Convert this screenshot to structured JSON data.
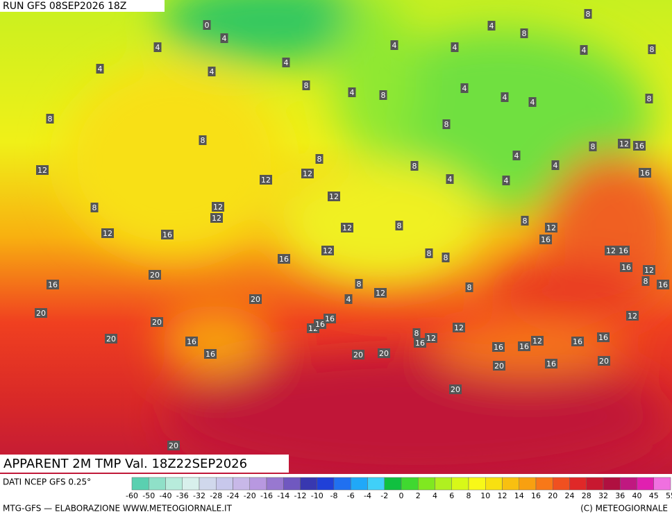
{
  "header": {
    "run": "RUN GFS 08SEP2026 18Z",
    "title": "APPARENT 2M TMP Val. 18Z22SEP2026"
  },
  "footer": {
    "source": "DATI NCEP GFS 0.25°",
    "credit": "MTG-GFS — ELABORAZIONE WWW.METEOGIORNALE.IT",
    "copyright": "(C) METEOGIORNALE"
  },
  "colorbar": {
    "labels": [
      -60,
      -50,
      -40,
      -36,
      -32,
      -28,
      -24,
      -20,
      -16,
      -14,
      -12,
      -10,
      -8,
      -6,
      -4,
      -2,
      0,
      2,
      4,
      6,
      8,
      10,
      12,
      14,
      16,
      20,
      24,
      28,
      32,
      36,
      40,
      45,
      55
    ],
    "colors": [
      "#5ad0b0",
      "#8fe0c8",
      "#b8ecdc",
      "#d8f0ec",
      "#d0d8ec",
      "#c8c8ec",
      "#c8b8e8",
      "#b898e0",
      "#9878d0",
      "#7058c0",
      "#3838b0",
      "#2040d8",
      "#2070f0",
      "#20a8f8",
      "#40d0f8",
      "#10c040",
      "#40d830",
      "#80e820",
      "#b0f020",
      "#d8f818",
      "#f8f818",
      "#f8e010",
      "#f8c010",
      "#f8a010",
      "#f87818",
      "#f05020",
      "#e02828",
      "#c81830",
      "#b01040",
      "#c01880",
      "#e020b0",
      "#f070e0"
    ]
  },
  "map_labels": [
    0,
    4,
    4,
    4,
    4,
    4,
    8,
    8,
    8,
    12,
    12,
    12,
    8,
    12,
    12,
    12,
    8,
    12,
    16,
    12,
    8,
    12,
    16,
    8,
    8,
    16,
    20,
    20,
    20,
    8,
    12,
    4,
    8,
    20,
    20,
    16,
    16,
    12,
    16,
    16,
    8,
    16,
    12,
    12,
    20,
    20,
    20,
    20,
    16,
    16,
    12,
    16,
    16,
    20,
    16,
    20,
    12,
    16,
    12,
    8,
    12,
    16,
    16,
    12,
    8,
    16,
    4,
    4,
    4,
    4,
    8,
    12,
    16,
    16,
    8,
    4,
    8,
    4,
    8,
    4,
    4,
    4,
    4,
    4,
    8,
    8,
    8,
    4,
    8
  ]
}
